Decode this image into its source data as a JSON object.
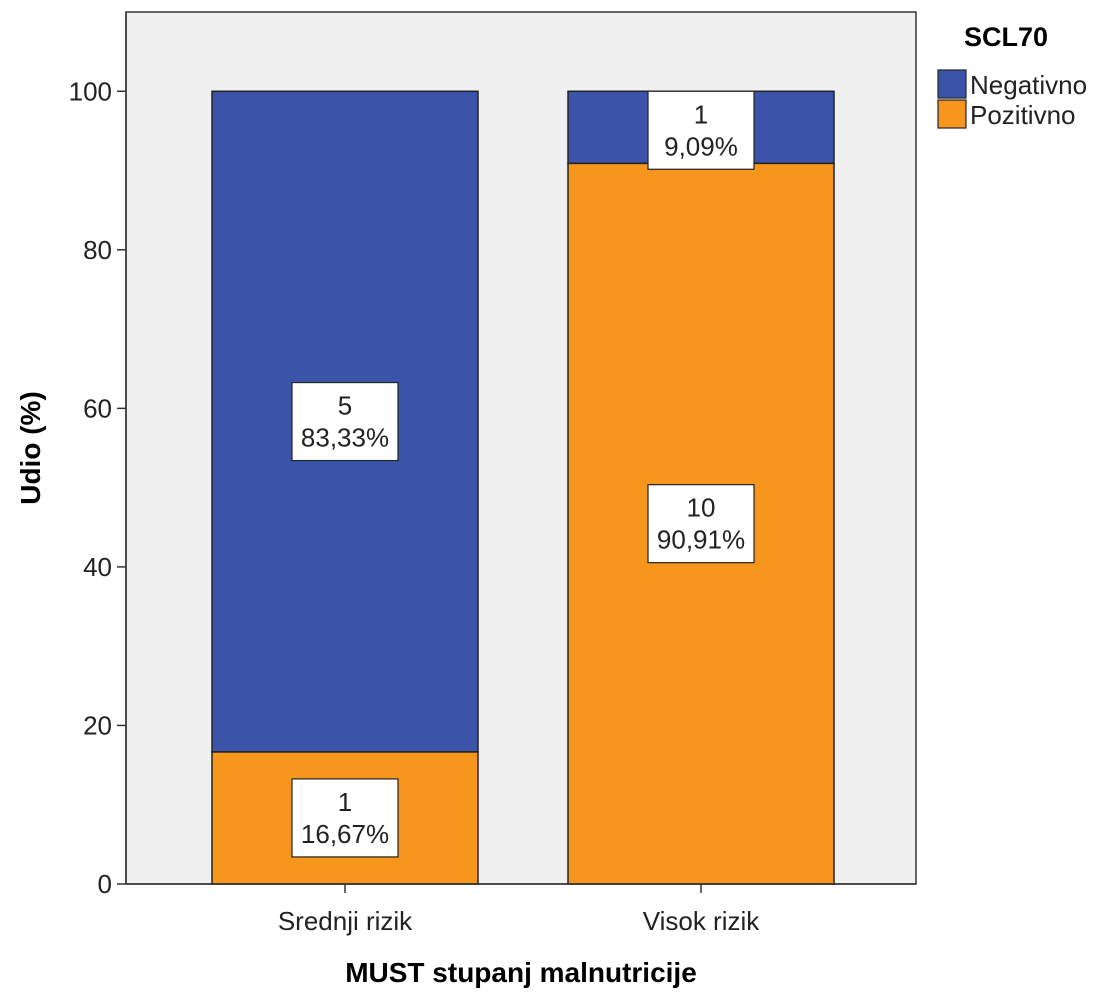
{
  "chart_data": {
    "type": "bar",
    "stacked": true,
    "title": "",
    "xlabel": "MUST stupanj malnutricije",
    "ylabel": "Udio (%)",
    "ylim": [
      0,
      110
    ],
    "yticks": [
      0,
      20,
      40,
      60,
      80,
      100
    ],
    "categories": [
      "Srednji rizik",
      "Visok rizik"
    ],
    "legend": {
      "title": "SCL70",
      "position": "top-right"
    },
    "series": [
      {
        "name": "Pozitivno",
        "color": "#f7961c",
        "values": [
          16.67,
          90.91
        ],
        "counts": [
          "1",
          "10"
        ],
        "percent_labels": [
          "16,67%",
          "90,91%"
        ]
      },
      {
        "name": "Negativno",
        "color": "#3b54a9",
        "values": [
          83.33,
          9.09
        ],
        "counts": [
          "5",
          "1"
        ],
        "percent_labels": [
          "83,33%",
          "9,09%"
        ]
      }
    ],
    "plot_background": "#f0f0f0",
    "grid": false
  }
}
